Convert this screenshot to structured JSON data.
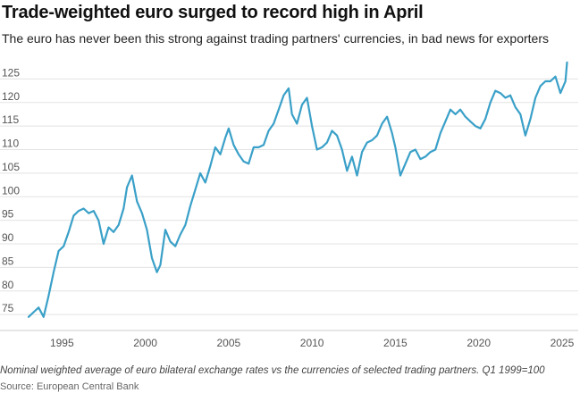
{
  "title": "Trade-weighted euro surged to record high in April",
  "subtitle": "The euro has never been this strong against trading partners' currencies, in bad news for exporters",
  "note": "Nominal weighted average of euro bilateral exchange rates vs the currencies of selected trading partners. Q1 1999=100",
  "source": "Source: European Central Bank",
  "colors": {
    "line": "#3aa0c8",
    "grid": "#e3e3e3",
    "axis": "#555555"
  },
  "chart_data": {
    "type": "line",
    "title": "Trade-weighted euro surged to record high in April",
    "xlabel": "",
    "ylabel": "",
    "xlim": [
      1993.0,
      2025.7
    ],
    "ylim": [
      72,
      130
    ],
    "grid": true,
    "x_ticks": [
      1995,
      2000,
      2005,
      2010,
      2015,
      2020,
      2025
    ],
    "y_ticks": [
      75,
      80,
      85,
      90,
      95,
      100,
      105,
      110,
      115,
      120,
      125
    ],
    "series": [
      {
        "x": [
          1993.0,
          1993.3,
          1993.6,
          1993.9,
          1994.2,
          1994.5,
          1994.8,
          1995.1,
          1995.4,
          1995.7,
          1996.0,
          1996.3,
          1996.6,
          1996.9,
          1997.2,
          1997.5,
          1997.8,
          1998.1,
          1998.4,
          1998.7,
          1998.9,
          1999.2,
          1999.5,
          1999.8,
          2000.1,
          2000.4,
          2000.7,
          2000.9,
          2001.2,
          2001.5,
          2001.8,
          2002.1,
          2002.4,
          2002.7,
          2003.0,
          2003.3,
          2003.6,
          2003.9,
          2004.2,
          2004.5,
          2004.8,
          2005.0,
          2005.3,
          2005.6,
          2005.9,
          2006.2,
          2006.5,
          2006.8,
          2007.1,
          2007.4,
          2007.7,
          2008.0,
          2008.3,
          2008.6,
          2008.8,
          2009.1,
          2009.4,
          2009.7,
          2010.0,
          2010.3,
          2010.6,
          2010.9,
          2011.2,
          2011.5,
          2011.8,
          2012.1,
          2012.4,
          2012.7,
          2013.0,
          2013.3,
          2013.6,
          2013.9,
          2014.2,
          2014.5,
          2014.8,
          2015.0,
          2015.3,
          2015.6,
          2015.9,
          2016.2,
          2016.5,
          2016.8,
          2017.1,
          2017.4,
          2017.7,
          2018.0,
          2018.3,
          2018.6,
          2018.9,
          2019.2,
          2019.5,
          2019.8,
          2020.1,
          2020.4,
          2020.7,
          2021.0,
          2021.3,
          2021.6,
          2021.9,
          2022.2,
          2022.5,
          2022.8,
          2023.1,
          2023.4,
          2023.7,
          2024.0,
          2024.3,
          2024.6,
          2024.9,
          2025.2,
          2025.3
        ],
        "values": [
          74.5,
          75.5,
          76.5,
          74.5,
          79.0,
          84.0,
          88.5,
          89.5,
          92.5,
          96.0,
          97.0,
          97.5,
          96.5,
          97.0,
          95.0,
          90.0,
          93.5,
          92.5,
          94.0,
          97.5,
          102.0,
          104.5,
          99.0,
          96.5,
          93.0,
          87.0,
          84.0,
          85.5,
          93.0,
          90.5,
          89.5,
          92.0,
          94.0,
          98.0,
          101.5,
          105.0,
          103.0,
          106.5,
          110.5,
          109.0,
          112.5,
          114.5,
          111.0,
          109.0,
          107.5,
          107.0,
          110.5,
          110.5,
          111.0,
          114.0,
          115.5,
          118.5,
          121.5,
          123.0,
          117.5,
          115.5,
          119.5,
          121.0,
          115.0,
          110.0,
          110.5,
          111.5,
          114.0,
          113.0,
          110.0,
          105.5,
          108.5,
          104.5,
          109.5,
          111.5,
          112.0,
          113.0,
          115.5,
          117.0,
          113.5,
          110.5,
          104.5,
          107.0,
          109.5,
          110.0,
          108.0,
          108.5,
          109.5,
          110.0,
          113.5,
          116.0,
          118.5,
          117.5,
          118.5,
          117.0,
          116.0,
          115.0,
          114.5,
          116.5,
          120.0,
          122.5,
          122.0,
          121.0,
          121.5,
          119.0,
          117.5,
          113.0,
          116.5,
          121.0,
          123.5,
          124.5,
          124.5,
          125.5,
          122.0,
          124.5,
          128.5
        ]
      }
    ]
  }
}
